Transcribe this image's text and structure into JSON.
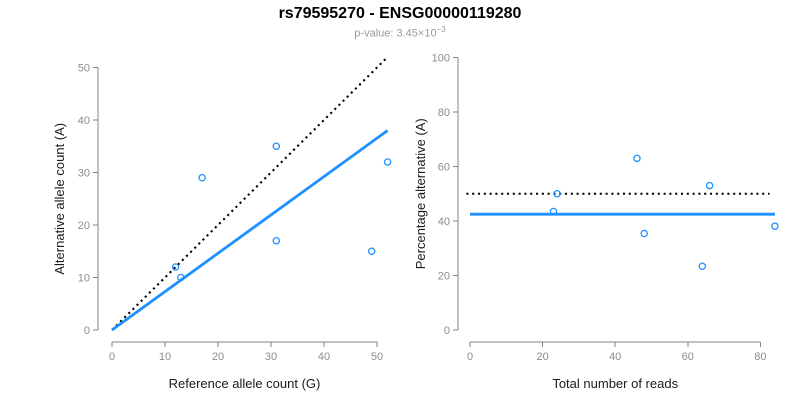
{
  "header": {
    "title": "rs79595270 - ENSG00000119280",
    "subtitle_prefix": "p-value: 3.45×10",
    "subtitle_exponent": "−3"
  },
  "colors": {
    "point": "#1E90FF",
    "fit_line": "#1E90FF",
    "dotted_line": "#000000",
    "axis": "#848484",
    "tick_label": "#8c8c8c",
    "axis_title": "#1a1a1a",
    "title": "#000000",
    "subtitle": "#9a9a9a",
    "background": "#ffffff"
  },
  "chart_data": [
    {
      "type": "scatter",
      "title": "",
      "xlabel": "Reference allele count (G)",
      "ylabel": "Alternative allele count (A)",
      "xlim": [
        0,
        54
      ],
      "ylim": [
        0,
        52
      ],
      "grid": false,
      "legend": null,
      "xticks": [
        0,
        10,
        20,
        30,
        40,
        50
      ],
      "yticks": [
        0,
        10,
        20,
        30,
        40,
        50
      ],
      "points": [
        [
          13,
          10
        ],
        [
          12,
          12
        ],
        [
          17,
          29
        ],
        [
          31,
          17
        ],
        [
          31,
          35
        ],
        [
          49,
          15
        ],
        [
          52,
          32
        ]
      ],
      "lines": [
        {
          "name": "identity-line",
          "style": "dotted",
          "color": "#000000",
          "from": [
            0,
            0
          ],
          "to": [
            52,
            52
          ]
        },
        {
          "name": "fit-line",
          "style": "solid",
          "color": "#1E90FF",
          "from": [
            0,
            0
          ],
          "to": [
            52,
            38
          ]
        }
      ]
    },
    {
      "type": "scatter",
      "title": "",
      "xlabel": "Total number of reads",
      "ylabel": "Percentage alternative (A)",
      "xlim": [
        0,
        85
      ],
      "ylim": [
        0,
        100
      ],
      "grid": false,
      "legend": null,
      "xticks": [
        0,
        20,
        40,
        60,
        80
      ],
      "yticks": [
        0,
        20,
        40,
        60,
        80,
        100
      ],
      "points": [
        [
          23,
          43.5
        ],
        [
          24,
          50
        ],
        [
          46,
          63
        ],
        [
          48,
          35.4
        ],
        [
          64,
          23.4
        ],
        [
          66,
          53
        ],
        [
          84,
          38.1
        ]
      ],
      "lines": [
        {
          "name": "fifty-percent-line",
          "style": "dotted",
          "color": "#000000",
          "from": [
            -1,
            50
          ],
          "to": [
            82.5,
            50
          ]
        },
        {
          "name": "mean-line",
          "style": "solid",
          "color": "#1E90FF",
          "from": [
            0,
            42.5
          ],
          "to": [
            84,
            42.5
          ]
        }
      ]
    }
  ]
}
